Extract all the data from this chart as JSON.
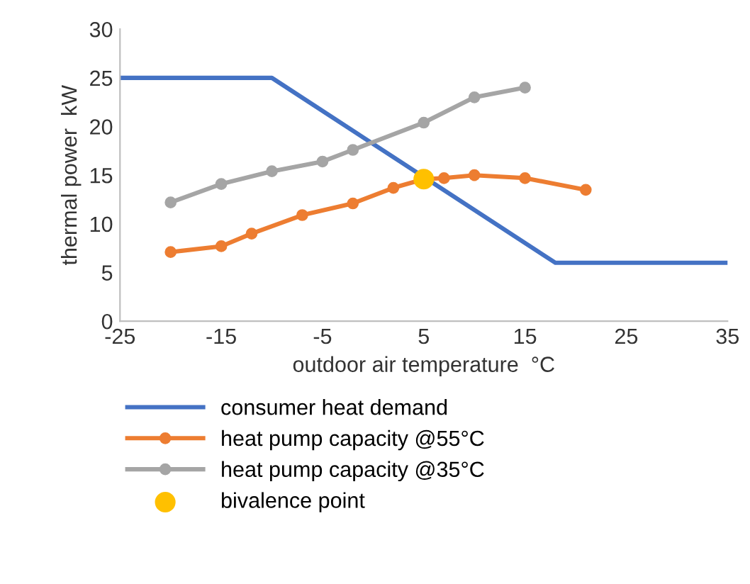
{
  "chart_data": {
    "type": "line",
    "xlabel": "outdoor air temperature  °C",
    "ylabel": "thermal power  kW",
    "xlim": [
      -25,
      35
    ],
    "xticks": [
      -25,
      -15,
      -5,
      5,
      15,
      25,
      35
    ],
    "ylim": [
      0,
      30
    ],
    "yticks": [
      0,
      5,
      10,
      15,
      20,
      25,
      30
    ],
    "grid": false,
    "legend": "bottom",
    "series": [
      {
        "name": "consumer heat demand",
        "color": "#4472c4",
        "marker": "none",
        "x": [
          -25,
          -10,
          18,
          35
        ],
        "values": [
          25,
          25,
          6,
          6
        ]
      },
      {
        "name": "heat pump capacity @55°C",
        "color": "#ed7d31",
        "marker": "circle",
        "x": [
          -20,
          -15,
          -12,
          -7,
          -2,
          2,
          5,
          7,
          10,
          15,
          21
        ],
        "values": [
          7.1,
          7.7,
          9.0,
          10.9,
          12.1,
          13.7,
          14.6,
          14.7,
          15.0,
          14.7,
          13.5
        ]
      },
      {
        "name": "heat pump capacity @35°C",
        "color": "#a5a5a5",
        "marker": "circle",
        "x": [
          -20,
          -15,
          -10,
          -5,
          -2,
          5,
          10,
          15
        ],
        "values": [
          12.2,
          14.1,
          15.4,
          16.4,
          17.6,
          20.4,
          23.0,
          24.0
        ]
      },
      {
        "name": "bivalence point",
        "type": "scatter",
        "color": "#ffc000",
        "marker": "circle",
        "x": [
          5
        ],
        "values": [
          14.6
        ]
      }
    ]
  }
}
